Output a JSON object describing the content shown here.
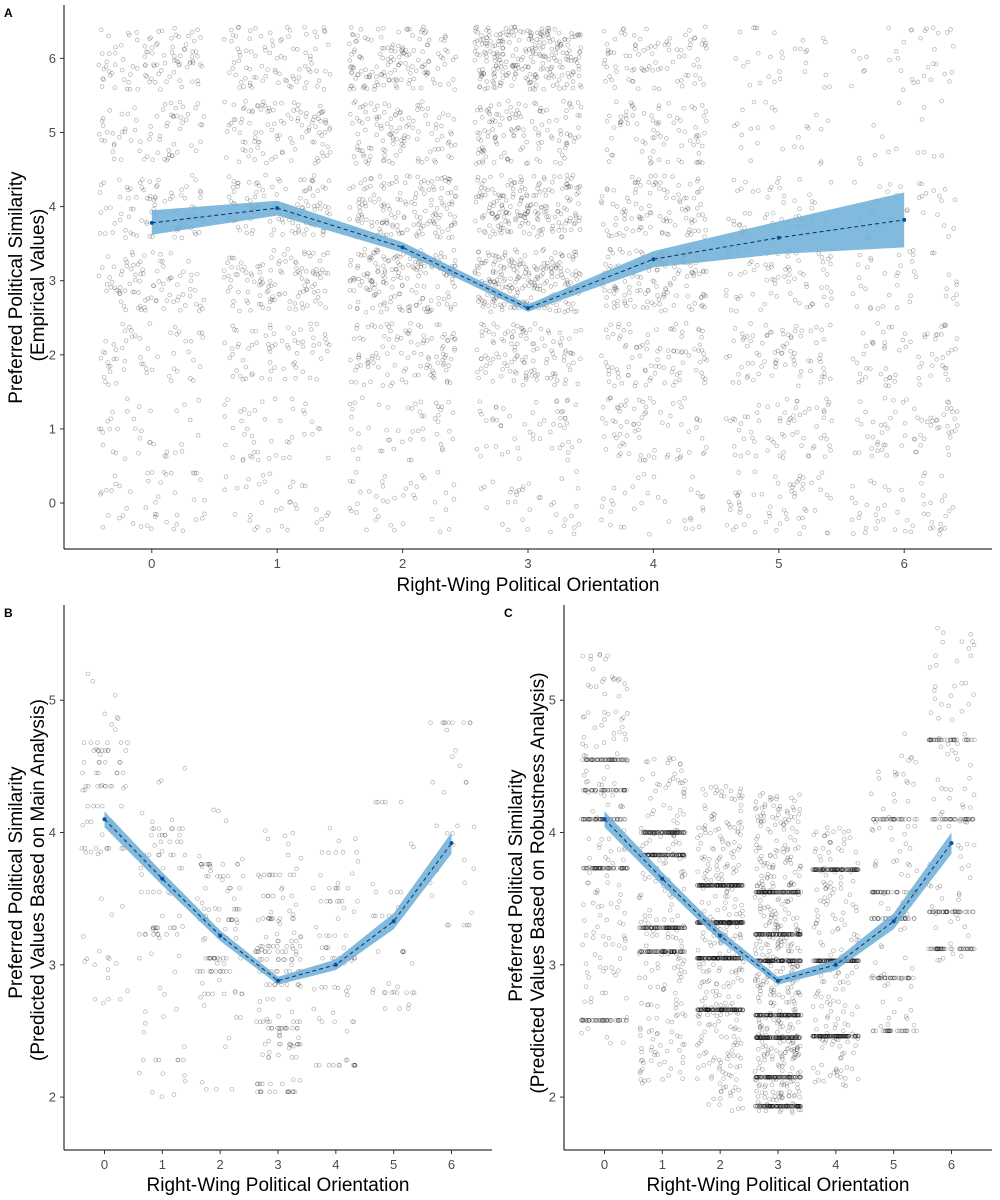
{
  "colors": {
    "points": "#000000",
    "ribbon": "#6baed6",
    "line": "#08306b",
    "mean_point": "#08519c"
  },
  "chart_data": [
    {
      "panel": "A",
      "type": "scatter",
      "xlabel": "Right-Wing Political Orientation",
      "ylabel_lines": [
        "Preferred Political Similarity",
        "(Empirical Values)"
      ],
      "xlim": [
        -0.7,
        6.7
      ],
      "ylim": [
        -0.62,
        6.72
      ],
      "x_ticks": [
        0,
        1,
        2,
        3,
        4,
        5,
        6
      ],
      "y_ticks": [
        0,
        1,
        2,
        3,
        4,
        5,
        6
      ],
      "grid": false,
      "jitter_points": "discrete y values 0-6 per x group with jitter",
      "density": [
        [
          45,
          35,
          40,
          35,
          35,
          60,
          50
        ],
        [
          35,
          45,
          50,
          55,
          75,
          70,
          65
        ],
        [
          55,
          70,
          110,
          120,
          95,
          80,
          65
        ],
        [
          90,
          120,
          180,
          230,
          130,
          70,
          40
        ],
        [
          85,
          110,
          160,
          200,
          110,
          45,
          30
        ],
        [
          70,
          110,
          120,
          130,
          80,
          25,
          15
        ],
        [
          100,
          90,
          150,
          260,
          90,
          30,
          35
        ]
      ],
      "mean_line": {
        "x": [
          0,
          1,
          2,
          3,
          4,
          5,
          6
        ],
        "y": [
          3.78,
          3.98,
          3.45,
          2.63,
          3.29,
          3.58,
          3.82
        ],
        "ci_low": [
          3.62,
          3.88,
          3.38,
          2.58,
          3.18,
          3.36,
          3.45
        ],
        "ci_high": [
          3.95,
          4.08,
          3.52,
          2.68,
          3.4,
          3.8,
          4.19
        ]
      }
    },
    {
      "panel": "B",
      "type": "scatter",
      "xlabel": "Right-Wing Political Orientation",
      "ylabel_lines": [
        "Preferred Political Similarity",
        "(Predicted Values Based on Main Analysis)"
      ],
      "xlim": [
        -0.7,
        6.7
      ],
      "ylim": [
        1.6,
        5.72
      ],
      "x_ticks": [
        0,
        1,
        2,
        3,
        4,
        5,
        6
      ],
      "y_ticks": [
        2,
        3,
        4,
        5
      ],
      "grid": false,
      "columns": [
        {
          "x": 0,
          "lines": [
            2.74,
            3.88,
            4.08,
            4.2,
            4.35,
            4.45,
            4.53,
            4.62,
            4.68
          ],
          "min": 2.58,
          "max": 5.25,
          "n": 90
        },
        {
          "x": 1,
          "lines": [
            2.28,
            3.23,
            3.28,
            3.37,
            3.55,
            3.73,
            3.83,
            3.93,
            3.98,
            4.03
          ],
          "min": 2.0,
          "max": 4.5,
          "n": 90
        },
        {
          "x": 2,
          "lines": [
            2.06,
            2.38,
            2.78,
            2.95,
            3.05,
            3.2,
            3.27,
            3.34,
            3.42,
            3.5,
            3.58,
            3.67,
            3.76
          ],
          "min": 2.06,
          "max": 4.2,
          "n": 110
        },
        {
          "x": 3,
          "lines": [
            2.04,
            2.1,
            2.3,
            2.4,
            2.52,
            2.57,
            2.74,
            2.85,
            2.95,
            3.04,
            3.1,
            3.14,
            3.18,
            3.35,
            3.52,
            3.68
          ],
          "min": 2.02,
          "max": 4.05,
          "n": 180
        },
        {
          "x": 4,
          "lines": [
            2.24,
            2.57,
            2.83,
            3.05,
            3.13,
            3.22,
            3.48,
            3.58,
            3.85
          ],
          "min": 2.24,
          "max": 4.05,
          "n": 80
        },
        {
          "x": 5,
          "lines": [
            2.67,
            2.79,
            3.1,
            3.37,
            3.55,
            4.23
          ],
          "min": 2.6,
          "max": 4.25,
          "n": 40
        },
        {
          "x": 6,
          "lines": [
            3.3,
            3.62,
            4.05,
            4.38,
            4.83
          ],
          "min": 3.25,
          "max": 4.85,
          "n": 35
        }
      ],
      "mean_line": {
        "x": [
          0,
          1,
          2,
          3,
          4,
          5,
          6
        ],
        "y": [
          4.1,
          3.65,
          3.22,
          2.88,
          3.0,
          3.33,
          3.92
        ],
        "ci_low": [
          4.04,
          3.6,
          3.18,
          2.85,
          2.96,
          3.27,
          3.84
        ],
        "ci_high": [
          4.16,
          3.7,
          3.26,
          2.91,
          3.04,
          3.39,
          4.0
        ]
      }
    },
    {
      "panel": "C",
      "type": "scatter",
      "xlabel": "Right-Wing Political Orientation",
      "ylabel_lines": [
        "Preferred Political Similarity",
        "(Predicted Values Based on Robustness Analysis)"
      ],
      "xlim": [
        -0.7,
        6.7
      ],
      "ylim": [
        1.6,
        5.72
      ],
      "x_ticks": [
        0,
        1,
        2,
        3,
        4,
        5,
        6
      ],
      "y_ticks": [
        2,
        3,
        4,
        5
      ],
      "grid": false,
      "columns": [
        {
          "x": 0,
          "lines": [
            2.58,
            3.73,
            4.1,
            4.32,
            4.55
          ],
          "min": 2.4,
          "max": 5.35,
          "n": 380
        },
        {
          "x": 1,
          "lines": [
            3.1,
            3.28,
            3.83,
            4.0
          ],
          "min": 2.1,
          "max": 4.6,
          "n": 520
        },
        {
          "x": 2,
          "lines": [
            2.66,
            3.05,
            3.32,
            3.6
          ],
          "min": 1.88,
          "max": 4.35,
          "n": 750
        },
        {
          "x": 3,
          "lines": [
            1.93,
            2.15,
            2.45,
            2.62,
            3.03,
            3.23,
            3.55
          ],
          "min": 1.88,
          "max": 4.3,
          "n": 1100
        },
        {
          "x": 4,
          "lines": [
            2.46,
            3.03,
            3.72
          ],
          "min": 2.08,
          "max": 4.05,
          "n": 480
        },
        {
          "x": 5,
          "lines": [
            2.5,
            2.9,
            3.35,
            3.55,
            4.1
          ],
          "min": 2.5,
          "max": 4.75,
          "n": 220
        },
        {
          "x": 6,
          "lines": [
            3.12,
            3.4,
            4.1,
            4.7
          ],
          "min": 2.95,
          "max": 5.55,
          "n": 230
        }
      ],
      "mean_line": {
        "x": [
          0,
          1,
          2,
          3,
          4,
          5,
          6
        ],
        "y": [
          4.1,
          3.65,
          3.22,
          2.88,
          3.0,
          3.33,
          3.92
        ],
        "ci_low": [
          4.04,
          3.6,
          3.18,
          2.85,
          2.96,
          3.27,
          3.84
        ],
        "ci_high": [
          4.16,
          3.7,
          3.26,
          2.91,
          3.04,
          3.39,
          4.0
        ]
      }
    }
  ]
}
